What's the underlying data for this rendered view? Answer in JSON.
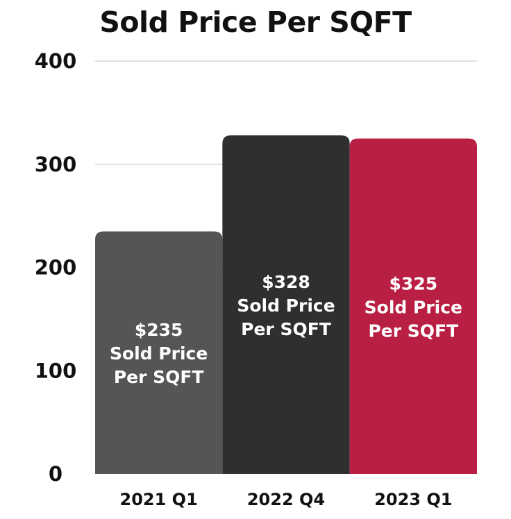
{
  "chart_data": {
    "type": "bar",
    "title": "Sold Price Per SQFT",
    "xlabel": "",
    "ylabel": "",
    "categories": [
      "2021 Q1",
      "2022 Q4",
      "2023 Q1"
    ],
    "values": [
      235,
      328,
      325
    ],
    "data_labels": [
      [
        "$235",
        "Sold Price",
        "Per SQFT"
      ],
      [
        "$328",
        "Sold Price",
        "Per SQFT"
      ],
      [
        "$325",
        "Sold Price",
        "Per SQFT"
      ]
    ],
    "bar_colors": [
      "#555555",
      "#2f2f2f",
      "#b81f42"
    ],
    "ylim": [
      0,
      400
    ],
    "yticks": [
      "0",
      "100",
      "200",
      "300",
      "400"
    ],
    "ytick_values": [
      0,
      100,
      200,
      300,
      400
    ],
    "grid": true,
    "legend": "none"
  }
}
